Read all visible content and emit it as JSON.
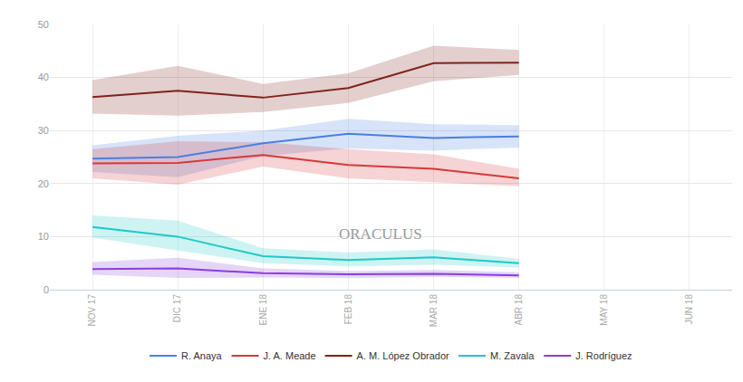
{
  "chart_data": {
    "type": "line",
    "categories": [
      "NOV 17",
      "DIC 17",
      "ENE 18",
      "FEB 18",
      "MAR 18",
      "ABR 18",
      "MAY 18",
      "JUN 18"
    ],
    "ylim": [
      0,
      50
    ],
    "yticks": [
      0,
      10,
      20,
      30,
      40,
      50
    ],
    "grid": true,
    "legend": "bottom",
    "annotations": [
      "ORACULUS"
    ],
    "series": [
      {
        "name": "R. Anaya",
        "color": "#4a7fe0",
        "values": [
          24.7,
          25.0,
          27.6,
          29.4,
          28.6,
          28.9,
          null,
          null
        ],
        "lower": [
          22.2,
          21.2,
          25.2,
          26.6,
          26.2,
          26.8,
          null,
          null
        ],
        "upper": [
          27.2,
          29.0,
          30.0,
          32.2,
          31.2,
          31.0,
          null,
          null
        ]
      },
      {
        "name": "J. A. Meade",
        "color": "#d7383a",
        "values": [
          23.8,
          23.9,
          25.4,
          23.5,
          22.8,
          21.0,
          null,
          null
        ],
        "lower": [
          21.0,
          19.8,
          23.2,
          21.0,
          20.2,
          19.5,
          null,
          null
        ],
        "upper": [
          26.5,
          28.0,
          27.8,
          26.5,
          25.5,
          22.8,
          null,
          null
        ]
      },
      {
        "name": "A. M. López Obrador",
        "color": "#7f231c",
        "values": [
          36.3,
          37.5,
          36.2,
          38.0,
          42.7,
          42.8,
          null,
          null
        ],
        "lower": [
          33.2,
          32.8,
          33.5,
          35.2,
          39.3,
          40.5,
          null,
          null
        ],
        "upper": [
          39.5,
          42.2,
          38.8,
          40.8,
          46.0,
          45.2,
          null,
          null
        ]
      },
      {
        "name": "M. Zavala",
        "color": "#1ec9c9",
        "values": [
          11.8,
          10.0,
          6.3,
          5.6,
          6.1,
          5.0,
          null,
          null
        ],
        "lower": [
          9.8,
          7.4,
          5.0,
          4.4,
          4.7,
          4.2,
          null,
          null
        ],
        "upper": [
          14.0,
          13.0,
          7.8,
          7.0,
          7.6,
          5.8,
          null,
          null
        ]
      },
      {
        "name": "J. Rodríguez",
        "color": "#8a3ee0",
        "values": [
          3.9,
          4.0,
          3.1,
          2.9,
          3.0,
          2.7,
          null,
          null
        ],
        "lower": [
          2.8,
          2.2,
          2.3,
          2.2,
          2.4,
          2.2,
          null,
          null
        ],
        "upper": [
          5.2,
          6.0,
          4.0,
          3.5,
          3.7,
          3.3,
          null,
          null
        ]
      }
    ]
  }
}
